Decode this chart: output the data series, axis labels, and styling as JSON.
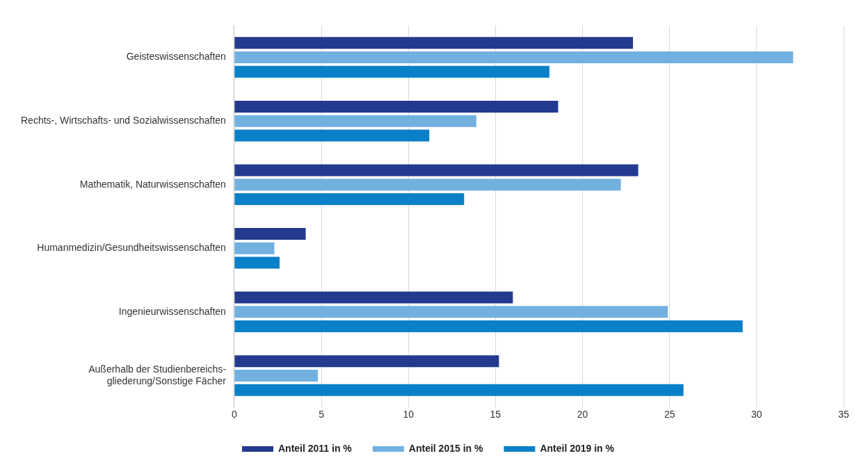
{
  "chart_data": {
    "type": "bar",
    "orientation": "horizontal",
    "categories": [
      "Geisteswissenschaften",
      "Rechts-, Wirtschafts- und Sozialwissenschaften",
      "Mathematik, Naturwissenschaften",
      "Humanmedizin/Gesundheitswissenschaften",
      "Ingenieurwissenschaften",
      "Außerhalb der Studienbereichs-gliederung/Sonstige Fächer"
    ],
    "series": [
      {
        "name": "Anteil 2011 in %",
        "color": "#233a8e",
        "values": [
          22.9,
          18.6,
          23.2,
          4.1,
          16.0,
          15.2
        ]
      },
      {
        "name": "Anteil 2015 in %",
        "color": "#72b0e0",
        "values": [
          32.1,
          13.9,
          22.2,
          2.3,
          24.9,
          4.8
        ]
      },
      {
        "name": "Anteil 2019 in %",
        "color": "#0a80c8",
        "values": [
          18.1,
          11.2,
          13.2,
          2.6,
          29.2,
          25.8
        ]
      }
    ],
    "xlim": [
      0,
      35
    ],
    "xticks": [
      0,
      5,
      10,
      15,
      20,
      25,
      30,
      35
    ],
    "grid": "x",
    "legend": "bottom"
  }
}
